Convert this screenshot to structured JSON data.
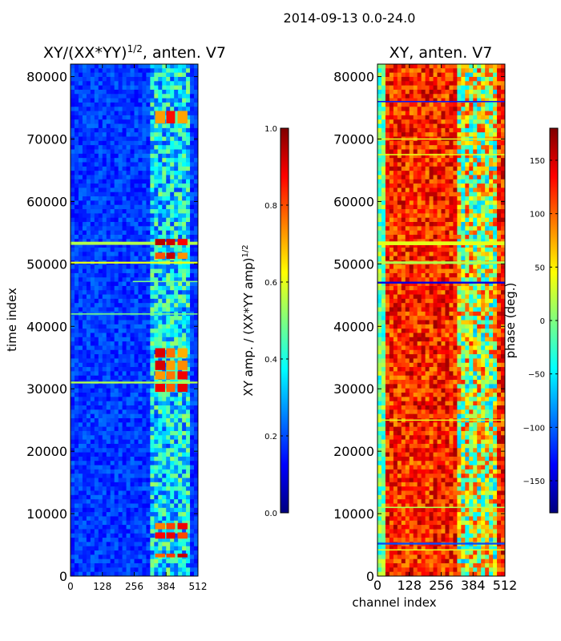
{
  "suptitle": "2014-09-13 0.0-24.0",
  "chart_data": [
    {
      "type": "heatmap",
      "title": "XY/(XX*YY)",
      "title_superscript": "1/2",
      "title_suffix": ", anten. V7",
      "xlabel": "",
      "ylabel": "time index",
      "xlim": [
        0,
        512
      ],
      "ylim": [
        0,
        82000
      ],
      "x_ticks": [
        "0",
        "128",
        "256",
        "384",
        "512"
      ],
      "y_ticks": [
        "0",
        "10000",
        "20000",
        "30000",
        "40000",
        "50000",
        "60000",
        "70000",
        "80000"
      ],
      "colorbar": {
        "label": "XY amp. / (XX*YY amp)",
        "label_superscript": "1/2",
        "range": [
          0.0,
          1.0
        ],
        "ticks": [
          "0.0",
          "0.2",
          "0.4",
          "0.6",
          "0.8",
          "1.0"
        ]
      },
      "colormap": "jet"
    },
    {
      "type": "heatmap",
      "title": "XY, anten. V7",
      "xlabel": "channel index",
      "ylabel": "",
      "xlim": [
        0,
        512
      ],
      "ylim": [
        0,
        82000
      ],
      "x_ticks": [
        "0",
        "128",
        "256",
        "384",
        "512"
      ],
      "y_ticks": [
        "0",
        "10000",
        "20000",
        "30000",
        "40000",
        "50000",
        "60000",
        "70000",
        "80000"
      ],
      "colorbar": {
        "label": "phase (deg.)",
        "range": [
          -180,
          180
        ],
        "ticks": [
          "−150",
          "−100",
          "−50",
          "0",
          "50",
          "100",
          "150"
        ]
      },
      "colormap": "jet"
    }
  ],
  "colors": {
    "jet": [
      "#00007f",
      "#0000ff",
      "#007fff",
      "#00ffff",
      "#7fff7f",
      "#ffff00",
      "#ff7f00",
      "#ff0000",
      "#7f0000"
    ]
  }
}
